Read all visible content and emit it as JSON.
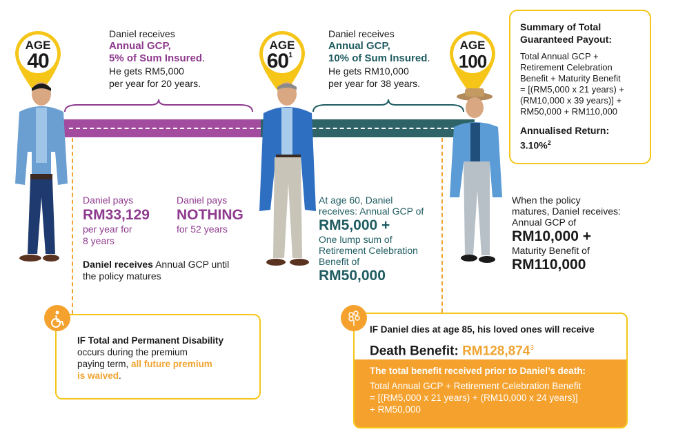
{
  "pins": {
    "age40": {
      "label": "AGE",
      "num": "40",
      "sup": ""
    },
    "age60": {
      "label": "AGE",
      "num": "60",
      "sup": "1"
    },
    "age100": {
      "label": "AGE",
      "num": "100",
      "sup": ""
    }
  },
  "phase1": {
    "line1": "Daniel receives",
    "line2": "Annual GCP,",
    "line3": "5% of Sum Insured",
    "line3_end": ".",
    "line4": "He gets RM5,000",
    "line5": "per year for 20 years."
  },
  "phase2": {
    "line1": "Daniel receives",
    "line2": "Annual GCP,",
    "line3": "10% of Sum Insured",
    "line3_end": ".",
    "line4": "He gets RM10,000",
    "line5": "per year for 38 years."
  },
  "summary": {
    "title1": "Summary of Total",
    "title2": "Guaranteed Payout:",
    "body1": "Total Annual GCP +",
    "body2": "Retirement Celebration",
    "body3": "Benefit + Maturity Benefit",
    "body4": "= [(RM5,000 x 21 years) +",
    "body5": "(RM10,000 x 39 years)] +",
    "body6": "RM50,000 + RM110,000",
    "ret_label": "Annualised Return:",
    "ret_value": "3.10%",
    "ret_sup": "2"
  },
  "pays1": {
    "line1": "Daniel pays",
    "amount": "RM33,129",
    "line3": "per year for",
    "line4": "8 years"
  },
  "pays2": {
    "line1": "Daniel pays",
    "amount": "NOTHING",
    "line3": "for 52 years"
  },
  "receives_until": {
    "bold": "Daniel receives",
    "rest": " Annual GCP until",
    "line2": "the policy matures"
  },
  "age60_receives": {
    "line1": "At age 60, Daniel",
    "line2": "receives: Annual GCP of",
    "amount1": "RM5,000 +",
    "line4": "One lump sum of",
    "line5": "Retirement Celebration",
    "line6": "Benefit of",
    "amount2": "RM50,000"
  },
  "maturity": {
    "line1": "When the policy",
    "line2": "matures, Daniel receives:",
    "line3": "Annual GCP of",
    "amount1": "RM10,000 +",
    "line5": "Maturity Benefit of",
    "amount2": "RM110,000"
  },
  "tpd": {
    "line1": "IF Total and Permanent Disability",
    "line2": "occurs during the premium",
    "line3_a": "paying term, ",
    "line3_b": "all future premium",
    "line4": "is waived",
    "line4_end": "."
  },
  "death": {
    "headline": "IF Daniel dies at age 85, his loved ones will receive",
    "label": "Death Benefit: ",
    "amount": "RM128,874",
    "sup": "3",
    "total_title": "The total benefit received prior to Daniel’s death:",
    "total1": "Total Annual GCP + Retirement Celebration Benefit",
    "total2": "= [(RM5,000 x 21 years) + (RM10,000 x 24 years)]",
    "total3": "+ RM50,000"
  },
  "colors": {
    "purple": "#a24b9f",
    "teal": "#2e6368",
    "yellow": "#f5c518",
    "orange": "#f5a12d"
  }
}
